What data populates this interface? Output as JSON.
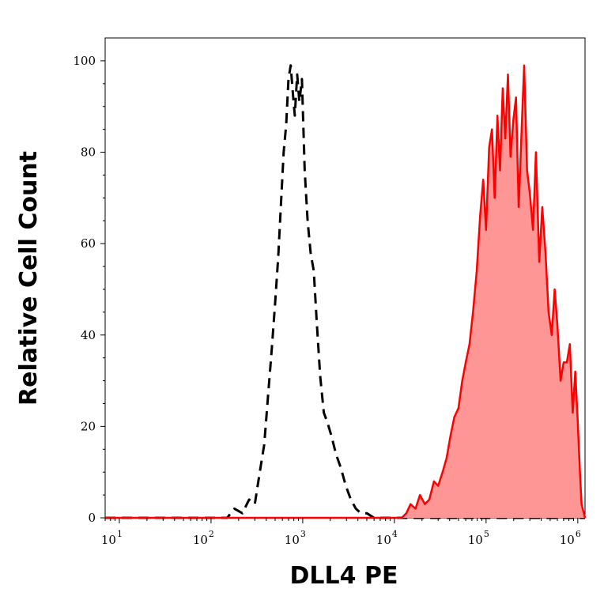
{
  "chart_data": {
    "type": "area",
    "xlabel": "DLL4 PE",
    "ylabel": "Relative Cell Count",
    "x_scale": "log",
    "xlim": [
      7,
      1200000
    ],
    "ylim": [
      0,
      105
    ],
    "grid": false,
    "legend": "none",
    "x_ticks": [
      {
        "value": 10,
        "base": "10",
        "exp": "1"
      },
      {
        "value": 100,
        "base": "10",
        "exp": "2"
      },
      {
        "value": 1000,
        "base": "10",
        "exp": "3"
      },
      {
        "value": 10000,
        "base": "10",
        "exp": "4"
      },
      {
        "value": 100000,
        "base": "10",
        "exp": "5"
      },
      {
        "value": 1000000,
        "base": "10",
        "exp": "6"
      }
    ],
    "y_ticks": [
      {
        "value": 0,
        "label": "0"
      },
      {
        "value": 20,
        "label": "20"
      },
      {
        "value": 40,
        "label": "40"
      },
      {
        "value": 60,
        "label": "60"
      },
      {
        "value": 80,
        "label": "80"
      },
      {
        "value": 100,
        "label": "100"
      }
    ],
    "series": [
      {
        "style": "dashed",
        "color": "#000000",
        "fill": false,
        "x": [
          7,
          150,
          180,
          220,
          260,
          300,
          340,
          380,
          420,
          460,
          500,
          540,
          580,
          620,
          660,
          700,
          740,
          780,
          820,
          870,
          920,
          980,
          1050,
          1130,
          1220,
          1320,
          1420,
          1550,
          1700,
          1850,
          2050,
          2300,
          2600,
          2950,
          3350,
          3800,
          4300,
          5000,
          6000,
          1200000
        ],
        "y": [
          0,
          0,
          2,
          1,
          4,
          3,
          10,
          16,
          27,
          37,
          47,
          57,
          69,
          80,
          86,
          96,
          99,
          93,
          88,
          97,
          91,
          96,
          76,
          65,
          58,
          54,
          43,
          31,
          23,
          21,
          18,
          14,
          11,
          7,
          4,
          2,
          1,
          1,
          0,
          0
        ]
      },
      {
        "style": "solid",
        "color": "#ff0000",
        "fill": true,
        "fill_color": "#ff9696",
        "x": [
          7,
          12000,
          13500,
          15000,
          17000,
          19000,
          21500,
          24000,
          27000,
          30000,
          33500,
          37000,
          41000,
          45000,
          50000,
          55000,
          60000,
          66000,
          72000,
          79000,
          86000,
          93000,
          100000,
          108000,
          116000,
          124000,
          133000,
          142000,
          152000,
          162000,
          173000,
          185000,
          198000,
          212000,
          227000,
          243000,
          260000,
          280000,
          300000,
          325000,
          350000,
          380000,
          410000,
          445000,
          480000,
          520000,
          560000,
          600000,
          650000,
          700000,
          760000,
          820000,
          880000,
          940000,
          1000000,
          1050000,
          1100000,
          1200000
        ],
        "y": [
          0,
          0,
          1,
          3,
          2,
          5,
          3,
          4,
          8,
          7,
          10,
          13,
          18,
          22,
          24,
          30,
          34,
          38,
          45,
          54,
          66,
          74,
          63,
          81,
          85,
          70,
          88,
          76,
          94,
          83,
          97,
          79,
          87,
          92,
          68,
          84,
          99,
          76,
          71,
          63,
          80,
          56,
          68,
          58,
          45,
          40,
          50,
          42,
          30,
          34,
          34,
          38,
          23,
          32,
          21,
          11,
          3,
          0
        ]
      }
    ]
  }
}
